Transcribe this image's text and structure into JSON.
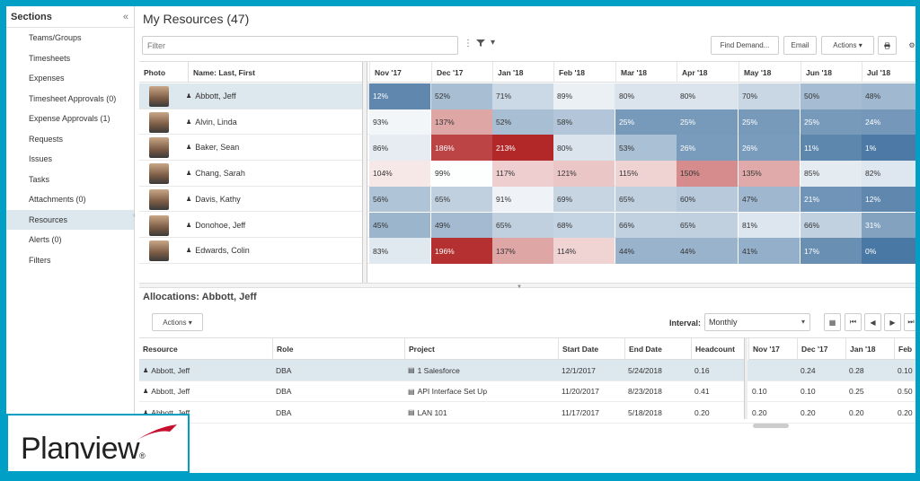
{
  "sidebar": {
    "title": "Sections",
    "collapse_icon": "«",
    "items": [
      {
        "label": "Teams/Groups",
        "active": false
      },
      {
        "label": "Timesheets",
        "active": false
      },
      {
        "label": "Expenses",
        "active": false
      },
      {
        "label": "Timesheet Approvals (0)",
        "active": false
      },
      {
        "label": "Expense Approvals (1)",
        "active": false
      },
      {
        "label": "Requests",
        "active": false
      },
      {
        "label": "Issues",
        "active": false
      },
      {
        "label": "Tasks",
        "active": false
      },
      {
        "label": "Attachments (0)",
        "active": false
      },
      {
        "label": "Resources",
        "active": true
      },
      {
        "label": "Alerts (0)",
        "active": false
      },
      {
        "label": "Filters",
        "active": false
      }
    ]
  },
  "header": {
    "title": "My Resources (47)"
  },
  "toolbar": {
    "filter_placeholder": "Filter",
    "find_demand": "Find Demand...",
    "email": "Email",
    "actions": "Actions ▾"
  },
  "grid": {
    "col_photo": "Photo",
    "col_name": "Name: Last, First",
    "months": [
      "Nov '17",
      "Dec '17",
      "Jan '18",
      "Feb '18",
      "Mar '18",
      "Apr '18",
      "May '18",
      "Jun '18",
      "Jul '18"
    ],
    "rows": [
      {
        "name": "Abbott, Jeff",
        "selected": true,
        "values": [
          "12%",
          "52%",
          "71%",
          "89%",
          "80%",
          "80%",
          "70%",
          "50%",
          "48%"
        ]
      },
      {
        "name": "Alvin, Linda",
        "selected": false,
        "values": [
          "93%",
          "137%",
          "52%",
          "58%",
          "25%",
          "25%",
          "25%",
          "25%",
          "24%"
        ]
      },
      {
        "name": "Baker, Sean",
        "selected": false,
        "values": [
          "86%",
          "186%",
          "213%",
          "80%",
          "53%",
          "26%",
          "26%",
          "11%",
          "1%"
        ]
      },
      {
        "name": "Chang, Sarah",
        "selected": false,
        "values": [
          "104%",
          "99%",
          "117%",
          "121%",
          "115%",
          "150%",
          "135%",
          "85%",
          "82%"
        ]
      },
      {
        "name": "Davis, Kathy",
        "selected": false,
        "values": [
          "56%",
          "65%",
          "91%",
          "69%",
          "65%",
          "60%",
          "47%",
          "21%",
          "12%"
        ]
      },
      {
        "name": "Donohoe, Jeff",
        "selected": false,
        "values": [
          "45%",
          "49%",
          "65%",
          "68%",
          "66%",
          "65%",
          "81%",
          "66%",
          "31%"
        ]
      },
      {
        "name": "Edwards, Colin",
        "selected": false,
        "values": [
          "83%",
          "196%",
          "137%",
          "114%",
          "44%",
          "44%",
          "41%",
          "17%",
          "0%"
        ]
      }
    ]
  },
  "allocations": {
    "title": "Allocations: Abbott, Jeff",
    "actions": "Actions ▾",
    "interval_label": "Interval:",
    "interval_value": "Monthly",
    "columns": [
      "Resource",
      "Role",
      "Project",
      "Start Date",
      "End Date",
      "Headcount"
    ],
    "months": [
      "Nov '17",
      "Dec '17",
      "Jan '18",
      "Feb"
    ],
    "rows": [
      {
        "resource": "Abbott, Jeff",
        "role": "DBA",
        "project": "1 Salesforce",
        "start": "12/1/2017",
        "end": "5/24/2018",
        "headcount": "0.16",
        "months": [
          "",
          "0.24",
          "0.28",
          "0.10"
        ],
        "selected": true
      },
      {
        "resource": "Abbott, Jeff",
        "role": "DBA",
        "project": "API Interface Set Up",
        "start": "11/20/2017",
        "end": "8/23/2018",
        "headcount": "0.41",
        "months": [
          "0.10",
          "0.10",
          "0.25",
          "0.50"
        ],
        "selected": false
      },
      {
        "resource": "Abbott, Jeff",
        "role": "DBA",
        "project": "LAN 101",
        "start": "11/17/2017",
        "end": "5/18/2018",
        "headcount": "0.20",
        "months": [
          "0.20",
          "0.20",
          "0.20",
          "0.20"
        ],
        "selected": false
      }
    ]
  },
  "logo": {
    "text": "Planview",
    "reg": "®"
  },
  "colors": {
    "border": "#00a0c6",
    "selected_row": "#dde7ee",
    "brand_red": "#c8102e"
  }
}
